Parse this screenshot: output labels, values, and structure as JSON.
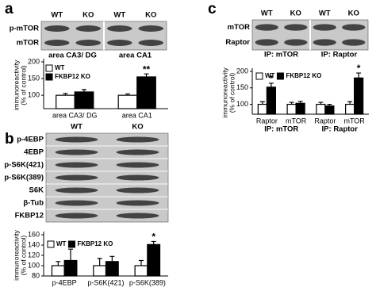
{
  "panels": [
    "a",
    "b",
    "c"
  ],
  "blots": [
    {
      "columns": [
        "WT",
        "KO",
        "WT",
        "KO"
      ],
      "rows": [
        "p-mTOR",
        "mTOR"
      ],
      "captions": [
        "area CA3/ DG",
        "area CA1"
      ]
    },
    {
      "columns": [
        "WT",
        "KO"
      ],
      "rows": [
        "p-4EBP",
        "4EBP",
        "p-S6K(421)",
        "p-S6K(389)",
        "S6K",
        "β-Tub",
        "FKBP12"
      ]
    },
    {
      "columns": [
        "WT",
        "KO",
        "WT",
        "KO"
      ],
      "rows": [
        "mTOR",
        "Raptor"
      ],
      "captions": [
        "IP: mTOR",
        "IP: Raptor"
      ]
    }
  ],
  "chart_data": [
    {
      "type": "bar",
      "y_label": [
        "immunoreactivity",
        "(% of control)"
      ],
      "categories": [
        "area CA3/ DG",
        "area CA1"
      ],
      "series": [
        {
          "name": "WT",
          "color": "#ffffff",
          "values": [
            100,
            100
          ],
          "errors": [
            5,
            4
          ]
        },
        {
          "name": "FKBP12 KO",
          "color": "#000000",
          "values": [
            110,
            155
          ],
          "errors": [
            7,
            9
          ]
        }
      ],
      "annotations": [
        null,
        "**"
      ],
      "ylim": [
        60,
        200
      ],
      "yticks": [
        100,
        150,
        200
      ]
    },
    {
      "type": "bar",
      "y_label": [
        "immunoreactivity",
        "(% of control)"
      ],
      "categories": [
        "p-4EBP",
        "p-S6K(421)",
        "p-S6K(389)"
      ],
      "series": [
        {
          "name": "WT",
          "color": "#ffffff",
          "values": [
            100,
            100,
            100
          ],
          "errors": [
            8,
            14,
            10
          ]
        },
        {
          "name": "FKBP12 KO",
          "color": "#000000",
          "values": [
            110,
            108,
            141
          ],
          "errors": [
            22,
            10,
            6
          ]
        }
      ],
      "annotations": [
        null,
        null,
        "*"
      ],
      "ylim": [
        80,
        160
      ],
      "yticks": [
        80,
        100,
        120,
        140,
        160
      ]
    },
    {
      "type": "bar",
      "y_label": [
        "immunoreactivity",
        "(% of control)"
      ],
      "categories": [
        "Raptor",
        "mTOR",
        "Raptor",
        "mTOR"
      ],
      "groups": [
        "IP: mTOR",
        "IP: Raptor"
      ],
      "series": [
        {
          "name": "WT",
          "color": "#ffffff",
          "values": [
            100,
            100,
            100,
            100
          ],
          "errors": [
            8,
            6,
            6,
            8
          ]
        },
        {
          "name": "FKBP12 KO",
          "color": "#000000",
          "values": [
            152,
            103,
            95,
            180
          ],
          "errors": [
            12,
            6,
            5,
            15
          ]
        }
      ],
      "annotations": [
        "*",
        null,
        null,
        "*"
      ],
      "ylim": [
        70,
        200
      ],
      "yticks": [
        50,
        100,
        150,
        200
      ]
    }
  ]
}
